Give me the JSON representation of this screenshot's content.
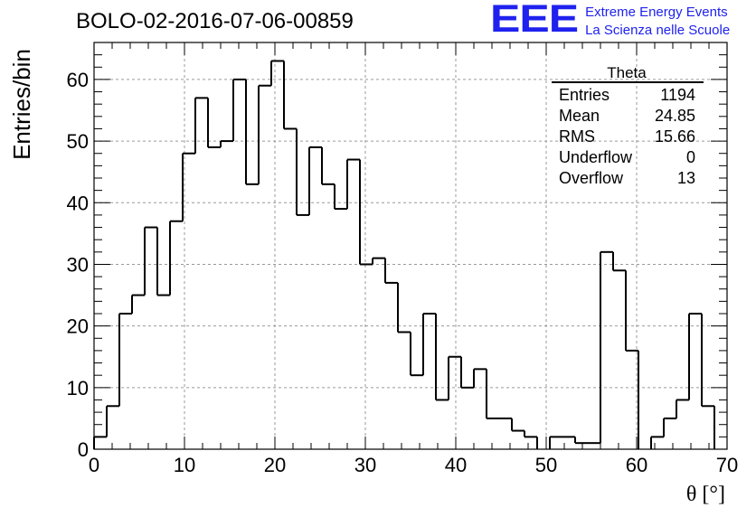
{
  "chart_data": {
    "type": "bar",
    "title": "BOLO-02-2016-07-06-00859",
    "xlabel": "θ [°]",
    "ylabel": "Entries/bin",
    "xlim": [
      0,
      70
    ],
    "ylim": [
      0,
      66
    ],
    "bin_width": 1.4,
    "grid": true,
    "values": [
      2,
      7,
      22,
      25,
      36,
      25,
      37,
      48,
      57,
      49,
      50,
      60,
      43,
      59,
      63,
      52,
      38,
      49,
      43,
      39,
      47,
      30,
      31,
      27,
      19,
      12,
      22,
      8,
      15,
      10,
      13,
      5,
      5,
      3,
      2,
      0,
      2,
      2,
      1,
      1,
      32,
      29,
      16,
      0,
      2,
      5,
      8,
      22,
      7,
      0
    ],
    "x_ticks": [
      "0",
      "10",
      "20",
      "30",
      "40",
      "50",
      "60",
      "70"
    ],
    "y_ticks": [
      "0",
      "10",
      "20",
      "30",
      "40",
      "50",
      "60"
    ],
    "stats": {
      "name": "Theta",
      "rows": [
        {
          "label": "Entries",
          "value": "1194"
        },
        {
          "label": "Mean",
          "value": "24.85"
        },
        {
          "label": "RMS",
          "value": "15.66"
        },
        {
          "label": "Underflow",
          "value": "0"
        },
        {
          "label": "Overflow",
          "value": "13"
        }
      ]
    }
  },
  "logo": {
    "mark": "EEE",
    "line1": "Extreme Energy Events",
    "line2": "La Scienza nelle Scuole"
  }
}
